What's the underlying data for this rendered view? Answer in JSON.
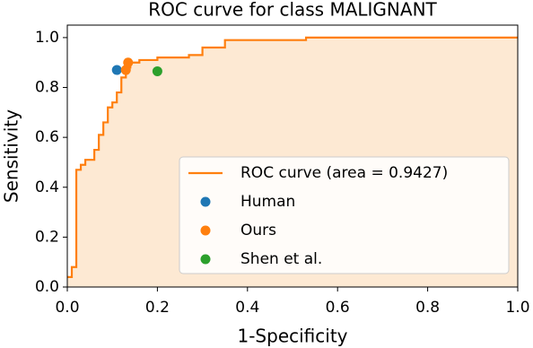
{
  "chart_data": {
    "type": "line",
    "title": "ROC curve for class MALIGNANT",
    "xlabel": "1-Specificity",
    "ylabel": "Sensitivity",
    "xlim": [
      0,
      1
    ],
    "ylim": [
      0,
      1.05
    ],
    "xticks": [
      {
        "value": 0,
        "label": "0.0"
      },
      0.2,
      0.4,
      0.6,
      0.8,
      {
        "value": 1,
        "label": "1.0"
      }
    ],
    "yticks": [
      {
        "value": 0,
        "label": "0.0"
      },
      0.2,
      0.4,
      0.6,
      0.8,
      {
        "value": 1,
        "label": "1.0"
      }
    ],
    "legend": "lower right",
    "series": [
      {
        "name": "ROC curve (area = 0.9427)",
        "type": "line",
        "color": "#ff7f0e",
        "fill": "#fde9d3",
        "x": [
          0,
          0.01,
          0.01,
          0.02,
          0.02,
          0.03,
          0.03,
          0.04,
          0.04,
          0.06,
          0.06,
          0.07,
          0.07,
          0.08,
          0.08,
          0.09,
          0.09,
          0.1,
          0.1,
          0.11,
          0.11,
          0.12,
          0.12,
          0.13,
          0.13,
          0.14,
          0.14,
          0.16,
          0.16,
          0.2,
          0.2,
          0.27,
          0.27,
          0.3,
          0.3,
          0.35,
          0.35,
          0.53,
          0.53,
          1.0
        ],
        "values": [
          0.04,
          0.04,
          0.08,
          0.08,
          0.47,
          0.47,
          0.49,
          0.49,
          0.51,
          0.51,
          0.55,
          0.55,
          0.61,
          0.61,
          0.66,
          0.66,
          0.72,
          0.72,
          0.74,
          0.74,
          0.78,
          0.78,
          0.84,
          0.84,
          0.88,
          0.88,
          0.9,
          0.9,
          0.91,
          0.91,
          0.92,
          0.92,
          0.93,
          0.93,
          0.96,
          0.96,
          0.99,
          0.99,
          1.0,
          1.0
        ]
      },
      {
        "name": "Human",
        "type": "scatter",
        "color": "#1f77b4",
        "x": [
          0.11
        ],
        "values": [
          0.87
        ]
      },
      {
        "name": "Ours",
        "type": "scatter",
        "color": "#ff7f0e",
        "x": [
          0.13,
          0.135
        ],
        "values": [
          0.87,
          0.9
        ]
      },
      {
        "name": "Shen et al.",
        "type": "scatter",
        "color": "#2ca02c",
        "x": [
          0.2
        ],
        "values": [
          0.865
        ]
      }
    ]
  }
}
